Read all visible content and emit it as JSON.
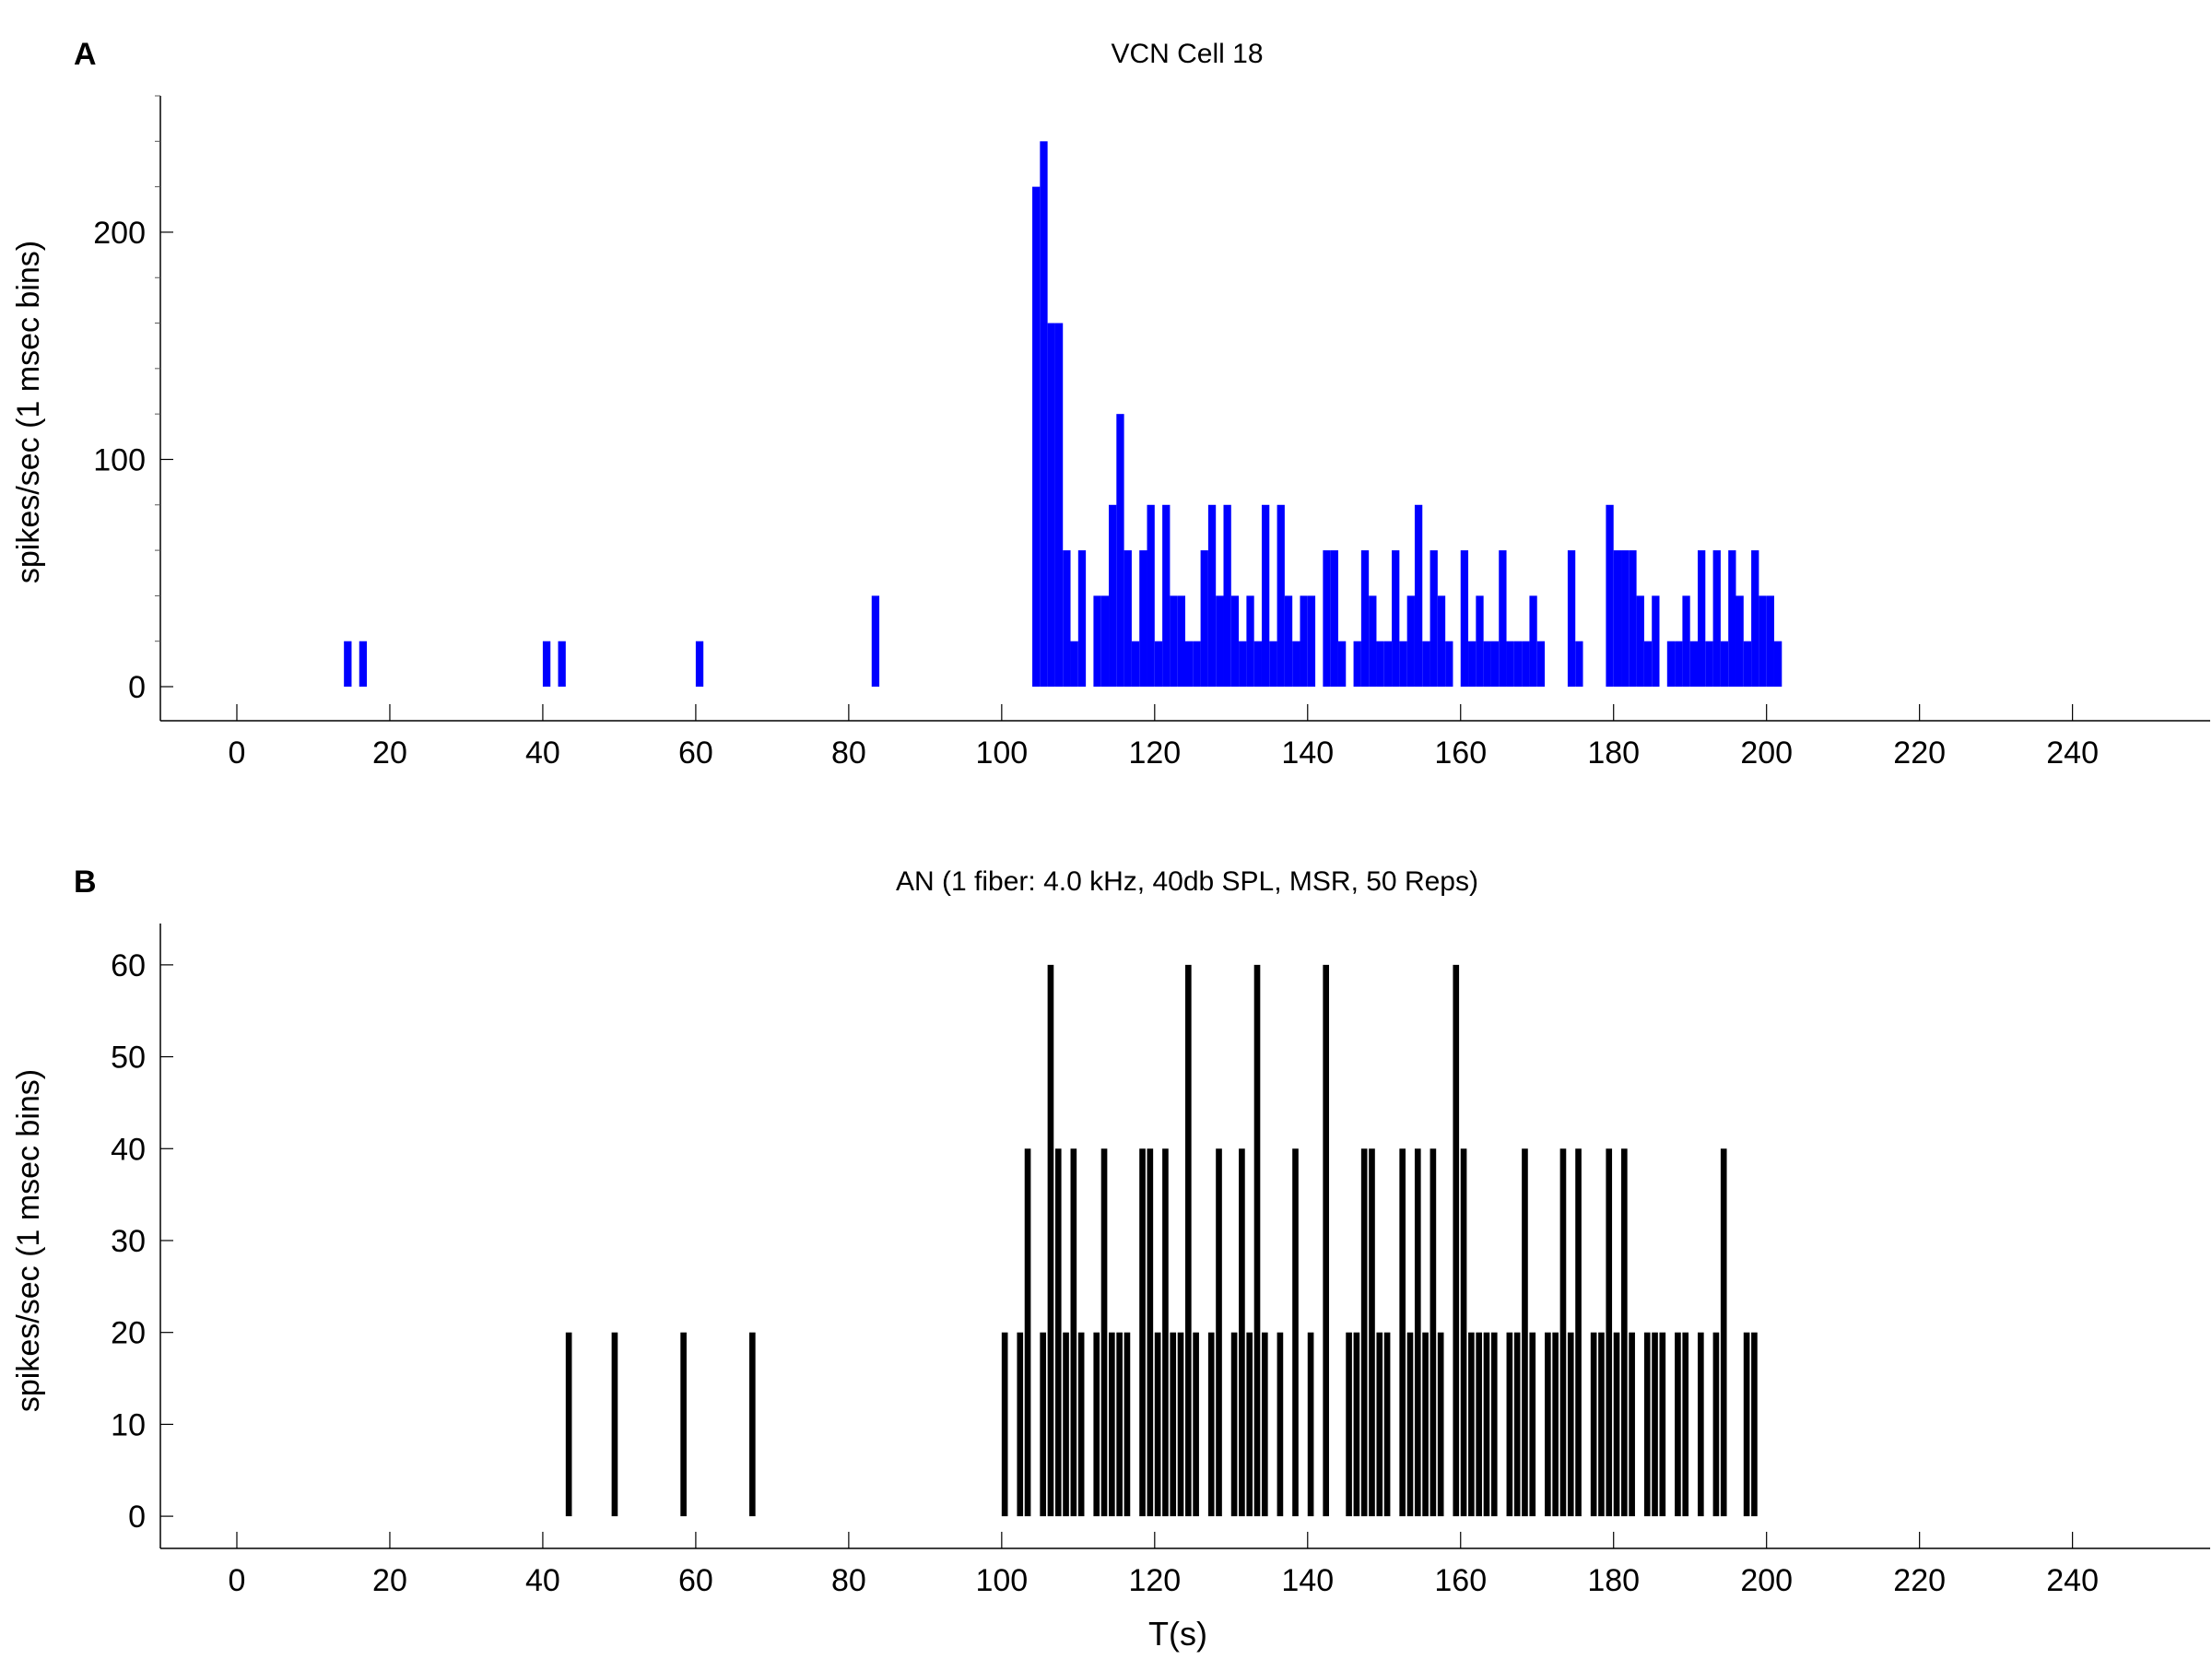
{
  "chart_data": [
    {
      "type": "bar",
      "panel_label": "A",
      "title": "VCN Cell 18",
      "xlabel": "",
      "ylabel": "spikes/sec (1 msec bins)",
      "color": "#0000ff",
      "xlim": [
        -10,
        258
      ],
      "ylim": [
        -15,
        260
      ],
      "x_ticks": [
        0,
        20,
        40,
        60,
        80,
        100,
        120,
        140,
        160,
        180,
        200,
        220,
        240
      ],
      "y_ticks": [
        0,
        100,
        200
      ],
      "y_minor_step": 20,
      "bin_width": 1,
      "bins": [
        [
          14,
          20
        ],
        [
          16,
          20
        ],
        [
          40,
          20
        ],
        [
          42,
          20
        ],
        [
          60,
          20
        ],
        [
          83,
          40
        ],
        [
          104,
          220
        ],
        [
          105,
          240
        ],
        [
          106,
          160
        ],
        [
          107,
          160
        ],
        [
          108,
          60
        ],
        [
          109,
          20
        ],
        [
          110,
          60
        ],
        [
          112,
          40
        ],
        [
          113,
          40
        ],
        [
          114,
          80
        ],
        [
          115,
          120
        ],
        [
          116,
          60
        ],
        [
          117,
          20
        ],
        [
          118,
          60
        ],
        [
          119,
          80
        ],
        [
          120,
          20
        ],
        [
          121,
          80
        ],
        [
          122,
          40
        ],
        [
          123,
          40
        ],
        [
          124,
          20
        ],
        [
          125,
          20
        ],
        [
          126,
          60
        ],
        [
          127,
          80
        ],
        [
          128,
          40
        ],
        [
          129,
          80
        ],
        [
          130,
          40
        ],
        [
          131,
          20
        ],
        [
          132,
          40
        ],
        [
          133,
          20
        ],
        [
          134,
          80
        ],
        [
          135,
          20
        ],
        [
          136,
          80
        ],
        [
          137,
          40
        ],
        [
          138,
          20
        ],
        [
          139,
          40
        ],
        [
          140,
          40
        ],
        [
          142,
          60
        ],
        [
          143,
          60
        ],
        [
          144,
          20
        ],
        [
          146,
          20
        ],
        [
          147,
          60
        ],
        [
          148,
          40
        ],
        [
          149,
          20
        ],
        [
          150,
          20
        ],
        [
          151,
          60
        ],
        [
          152,
          20
        ],
        [
          153,
          40
        ],
        [
          154,
          80
        ],
        [
          155,
          20
        ],
        [
          156,
          60
        ],
        [
          157,
          40
        ],
        [
          158,
          20
        ],
        [
          160,
          60
        ],
        [
          161,
          20
        ],
        [
          162,
          40
        ],
        [
          163,
          20
        ],
        [
          164,
          20
        ],
        [
          165,
          60
        ],
        [
          166,
          20
        ],
        [
          167,
          20
        ],
        [
          168,
          20
        ],
        [
          169,
          40
        ],
        [
          170,
          20
        ],
        [
          174,
          60
        ],
        [
          175,
          20
        ],
        [
          179,
          80
        ],
        [
          180,
          60
        ],
        [
          181,
          60
        ],
        [
          182,
          60
        ],
        [
          183,
          40
        ],
        [
          184,
          20
        ],
        [
          185,
          40
        ],
        [
          187,
          20
        ],
        [
          188,
          20
        ],
        [
          189,
          40
        ],
        [
          190,
          20
        ],
        [
          191,
          60
        ],
        [
          192,
          20
        ],
        [
          193,
          60
        ],
        [
          194,
          20
        ],
        [
          195,
          60
        ],
        [
          196,
          40
        ],
        [
          197,
          20
        ],
        [
          198,
          60
        ],
        [
          199,
          40
        ],
        [
          200,
          40
        ],
        [
          201,
          20
        ]
      ]
    },
    {
      "type": "bar",
      "panel_label": "B",
      "title": "AN (1 fiber: 4.0 kHz, 40db SPL, MSR, 50 Reps)",
      "xlabel": "T(s)",
      "ylabel": "spikes/sec (1 msec bins)",
      "color": "#000000",
      "xlim": [
        -10,
        258
      ],
      "ylim": [
        -3.5,
        64.5
      ],
      "x_ticks": [
        0,
        20,
        40,
        60,
        80,
        100,
        120,
        140,
        160,
        180,
        200,
        220,
        240
      ],
      "y_ticks": [
        0,
        10,
        20,
        30,
        40,
        50,
        60
      ],
      "bin_width": 0.8,
      "bins": [
        [
          43,
          20
        ],
        [
          49,
          20
        ],
        [
          58,
          20
        ],
        [
          67,
          20
        ],
        [
          100,
          20
        ],
        [
          102,
          20
        ],
        [
          103,
          40
        ],
        [
          105,
          20
        ],
        [
          106,
          60
        ],
        [
          107,
          40
        ],
        [
          108,
          20
        ],
        [
          109,
          40
        ],
        [
          110,
          20
        ],
        [
          112,
          20
        ],
        [
          113,
          40
        ],
        [
          114,
          20
        ],
        [
          115,
          20
        ],
        [
          116,
          20
        ],
        [
          118,
          40
        ],
        [
          119,
          40
        ],
        [
          120,
          20
        ],
        [
          121,
          40
        ],
        [
          122,
          20
        ],
        [
          123,
          20
        ],
        [
          124,
          60
        ],
        [
          125,
          20
        ],
        [
          127,
          20
        ],
        [
          128,
          40
        ],
        [
          130,
          20
        ],
        [
          131,
          40
        ],
        [
          132,
          20
        ],
        [
          133,
          60
        ],
        [
          134,
          20
        ],
        [
          136,
          20
        ],
        [
          138,
          40
        ],
        [
          140,
          20
        ],
        [
          142,
          60
        ],
        [
          145,
          20
        ],
        [
          146,
          20
        ],
        [
          147,
          40
        ],
        [
          148,
          40
        ],
        [
          149,
          20
        ],
        [
          150,
          20
        ],
        [
          152,
          40
        ],
        [
          153,
          20
        ],
        [
          154,
          40
        ],
        [
          155,
          20
        ],
        [
          156,
          40
        ],
        [
          157,
          20
        ],
        [
          159,
          60
        ],
        [
          160,
          40
        ],
        [
          161,
          20
        ],
        [
          162,
          20
        ],
        [
          163,
          20
        ],
        [
          164,
          20
        ],
        [
          166,
          20
        ],
        [
          167,
          20
        ],
        [
          168,
          40
        ],
        [
          169,
          20
        ],
        [
          171,
          20
        ],
        [
          172,
          20
        ],
        [
          173,
          40
        ],
        [
          174,
          20
        ],
        [
          175,
          40
        ],
        [
          177,
          20
        ],
        [
          178,
          20
        ],
        [
          179,
          40
        ],
        [
          180,
          20
        ],
        [
          181,
          40
        ],
        [
          182,
          20
        ],
        [
          184,
          20
        ],
        [
          185,
          20
        ],
        [
          186,
          20
        ],
        [
          188,
          20
        ],
        [
          189,
          20
        ],
        [
          191,
          20
        ],
        [
          193,
          20
        ],
        [
          194,
          40
        ],
        [
          197,
          20
        ],
        [
          198,
          20
        ]
      ]
    }
  ]
}
